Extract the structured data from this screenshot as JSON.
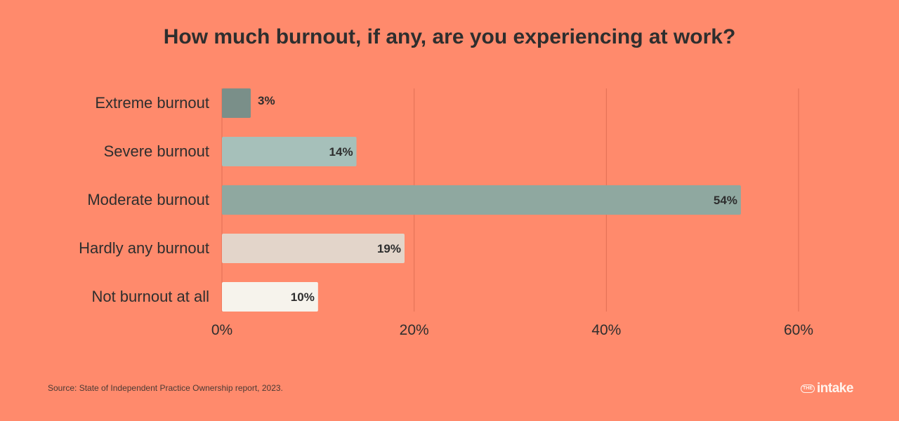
{
  "chart_data": {
    "type": "bar",
    "orientation": "horizontal",
    "title": "How much burnout, if any, are you experiencing at work?",
    "categories": [
      "Extreme burnout",
      "Severe burnout",
      "Moderate burnout",
      "Hardly any burnout",
      "Not burnout at all"
    ],
    "values": [
      3,
      14,
      54,
      19,
      10
    ],
    "value_labels": [
      "3%",
      "14%",
      "54%",
      "19%",
      "10%"
    ],
    "bar_colors": [
      "#7A8F89",
      "#A6C0BA",
      "#8FA8A0",
      "#E3D5CA",
      "#F6F3EC"
    ],
    "x_ticks": [
      0,
      20,
      40,
      60
    ],
    "x_tick_labels": [
      "0%",
      "20%",
      "40%",
      "60%"
    ],
    "xlim": [
      0,
      60
    ],
    "grid": "vertical",
    "legend": "none"
  },
  "footer": {
    "source": "Source: State of Independent Practice Ownership report, 2023.",
    "logo_badge": "THE",
    "logo_word": "intake"
  },
  "colors": {
    "background": "#FF8A6C",
    "gridline": "#E06F55",
    "text": "#2e2e2e"
  }
}
